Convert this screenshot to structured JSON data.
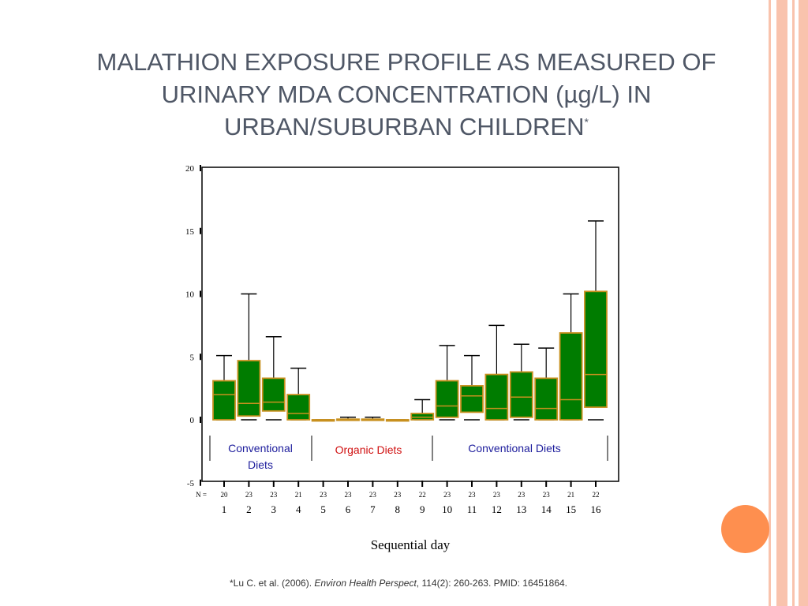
{
  "slide": {
    "title": "MALATHION EXPOSURE PROFILE AS MEASURED OF URINARY MDA CONCENTRATION (µg/L) IN URBAN/SUBURBAN CHILDREN",
    "title_superscript": "*",
    "footnote_prefix": "*Lu C. et al. (2006). ",
    "footnote_journal": "Environ Health Perspect",
    "footnote_suffix": ", 114(2): 260-263. PMID: 16451864."
  },
  "colors": {
    "title": "#4f5766",
    "box_fill": "#007c00",
    "box_edge": "#c8901f",
    "conventional_label": "#1c1c9c",
    "organic_label": "#d01010",
    "accent_circle": "#fe8f4f",
    "deco_stripe": "#f9c3ad"
  },
  "chart_data": {
    "type": "box",
    "xlabel": "Sequential day",
    "n_label": "N =",
    "ylim": [
      -5,
      20
    ],
    "yticks": [
      -5,
      0,
      5,
      10,
      15,
      20
    ],
    "days": [
      {
        "day": "1",
        "n": "20",
        "min": 0,
        "q1": 0,
        "median": 2.0,
        "q3": 3.1,
        "max": 5.1
      },
      {
        "day": "2",
        "n": "23",
        "min": 0,
        "q1": 0.3,
        "median": 1.3,
        "q3": 4.7,
        "max": 10.0
      },
      {
        "day": "3",
        "n": "23",
        "min": 0,
        "q1": 0.7,
        "median": 1.4,
        "q3": 3.3,
        "max": 6.6
      },
      {
        "day": "4",
        "n": "21",
        "min": 0,
        "q1": 0,
        "median": 0.5,
        "q3": 2.0,
        "max": 4.1
      },
      {
        "day": "5",
        "n": "23",
        "min": 0,
        "q1": 0,
        "median": 0,
        "q3": 0,
        "max": 0
      },
      {
        "day": "6",
        "n": "23",
        "min": 0,
        "q1": 0,
        "median": 0,
        "q3": 0.05,
        "max": 0.2
      },
      {
        "day": "7",
        "n": "23",
        "min": 0,
        "q1": 0,
        "median": 0,
        "q3": 0.05,
        "max": 0.2
      },
      {
        "day": "8",
        "n": "23",
        "min": 0,
        "q1": 0,
        "median": 0,
        "q3": 0,
        "max": 0
      },
      {
        "day": "9",
        "n": "22",
        "min": 0,
        "q1": 0,
        "median": 0.2,
        "q3": 0.5,
        "max": 1.6
      },
      {
        "day": "10",
        "n": "23",
        "min": 0,
        "q1": 0.2,
        "median": 1.1,
        "q3": 3.1,
        "max": 5.9
      },
      {
        "day": "11",
        "n": "23",
        "min": 0,
        "q1": 0.6,
        "median": 1.9,
        "q3": 2.7,
        "max": 5.1
      },
      {
        "day": "12",
        "n": "23",
        "min": 0,
        "q1": 0,
        "median": 0.9,
        "q3": 3.6,
        "max": 7.5
      },
      {
        "day": "13",
        "n": "23",
        "min": 0,
        "q1": 0.2,
        "median": 1.8,
        "q3": 3.8,
        "max": 6.0
      },
      {
        "day": "14",
        "n": "23",
        "min": 0,
        "q1": 0,
        "median": 0.9,
        "q3": 3.3,
        "max": 5.7
      },
      {
        "day": "15",
        "n": "21",
        "min": 0,
        "q1": 0,
        "median": 1.6,
        "q3": 6.9,
        "max": 10.0
      },
      {
        "day": "16",
        "n": "22",
        "min": 0,
        "q1": 1.0,
        "median": 3.6,
        "q3": 10.2,
        "max": 15.8
      }
    ],
    "annotations": [
      {
        "line1": "Conventional",
        "line2": "Diets",
        "from_day": 1,
        "to_day": 4,
        "color": "#1c1c9c"
      },
      {
        "line1": "Organic Diets",
        "line2": "",
        "from_day": 5,
        "to_day": 9,
        "color": "#d01010"
      },
      {
        "line1": "Conventional Diets",
        "line2": "",
        "from_day": 10,
        "to_day": 16,
        "color": "#1c1c9c"
      }
    ]
  }
}
